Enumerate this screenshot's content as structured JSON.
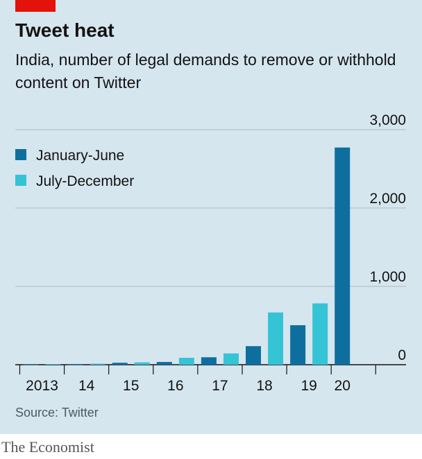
{
  "header": {
    "title": "Tweet heat",
    "subtitle": "India, number of legal demands to remove or withhold content on Twitter"
  },
  "footer": {
    "source": "Source: Twitter",
    "brand": "The Economist"
  },
  "colors": {
    "january_june": "#0e6f9e",
    "july_december": "#35c3d6",
    "accent": "#e3120b"
  },
  "chart_data": {
    "type": "bar",
    "title": "Tweet heat",
    "subtitle": "India, number of legal demands to remove or withhold content on Twitter",
    "x_tick_labels": [
      "2013",
      "14",
      "15",
      "16",
      "17",
      "18",
      "19",
      "20"
    ],
    "y_tick_labels": [
      "0",
      "1,000",
      "2,000",
      "3,000"
    ],
    "y_ticks": [
      0,
      1000,
      2000,
      3000
    ],
    "ylim": [
      0,
      3000
    ],
    "grid": true,
    "legend": "top-left",
    "periods": [
      {
        "year": "2013",
        "half": "H1",
        "value": 3
      },
      {
        "year": "2013",
        "half": "H2",
        "value": 8
      },
      {
        "year": "2014",
        "half": "H1",
        "value": 2
      },
      {
        "year": "2014",
        "half": "H2",
        "value": 13
      },
      {
        "year": "2015",
        "half": "H1",
        "value": 25
      },
      {
        "year": "2015",
        "half": "H2",
        "value": 30
      },
      {
        "year": "2016",
        "half": "H1",
        "value": 35
      },
      {
        "year": "2016",
        "half": "H2",
        "value": 88
      },
      {
        "year": "2017",
        "half": "H1",
        "value": 95
      },
      {
        "year": "2017",
        "half": "H2",
        "value": 144
      },
      {
        "year": "2018",
        "half": "H1",
        "value": 237
      },
      {
        "year": "2018",
        "half": "H2",
        "value": 667
      },
      {
        "year": "2019",
        "half": "H1",
        "value": 504
      },
      {
        "year": "2019",
        "half": "H2",
        "value": 783
      },
      {
        "year": "2020",
        "half": "H1",
        "value": 2772
      }
    ],
    "series": [
      {
        "name": "January-June",
        "key": "H1",
        "color": "#0e6f9e"
      },
      {
        "name": "July-December",
        "key": "H2",
        "color": "#35c3d6"
      }
    ]
  }
}
